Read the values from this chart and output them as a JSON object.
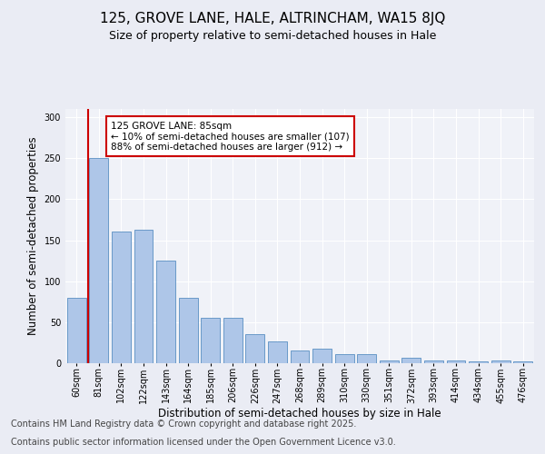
{
  "title1": "125, GROVE LANE, HALE, ALTRINCHAM, WA15 8JQ",
  "title2": "Size of property relative to semi-detached houses in Hale",
  "xlabel": "Distribution of semi-detached houses by size in Hale",
  "ylabel": "Number of semi-detached properties",
  "categories": [
    "60sqm",
    "81sqm",
    "102sqm",
    "122sqm",
    "143sqm",
    "164sqm",
    "185sqm",
    "206sqm",
    "226sqm",
    "247sqm",
    "268sqm",
    "289sqm",
    "310sqm",
    "330sqm",
    "351sqm",
    "372sqm",
    "393sqm",
    "414sqm",
    "434sqm",
    "455sqm",
    "476sqm"
  ],
  "values": [
    80,
    250,
    160,
    163,
    125,
    80,
    55,
    55,
    35,
    27,
    15,
    18,
    11,
    11,
    3,
    7,
    3,
    3,
    2,
    3,
    2
  ],
  "bar_color": "#aec6e8",
  "bar_edge_color": "#5a8fc2",
  "property_line_idx": 1,
  "property_line_color": "#cc0000",
  "annotation_text": "125 GROVE LANE: 85sqm\n← 10% of semi-detached houses are smaller (107)\n88% of semi-detached houses are larger (912) →",
  "annotation_box_color": "#ffffff",
  "annotation_box_edge": "#cc0000",
  "ylim": [
    0,
    310
  ],
  "yticks": [
    0,
    50,
    100,
    150,
    200,
    250,
    300
  ],
  "bg_color": "#eaecf4",
  "plot_bg_color": "#f0f2f8",
  "footer1": "Contains HM Land Registry data © Crown copyright and database right 2025.",
  "footer2": "Contains public sector information licensed under the Open Government Licence v3.0.",
  "title_fontsize": 11,
  "subtitle_fontsize": 9,
  "axis_label_fontsize": 8.5,
  "tick_fontsize": 7,
  "footer_fontsize": 7,
  "annotation_fontsize": 7.5
}
